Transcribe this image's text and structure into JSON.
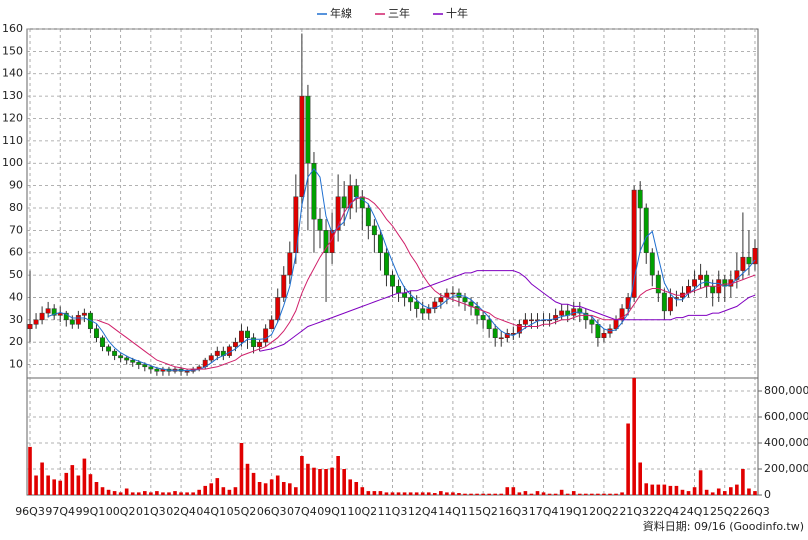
{
  "chart_data": {
    "type": "candlestick",
    "categories": [
      "96Q3",
      null,
      null,
      null,
      null,
      "97Q4",
      null,
      null,
      null,
      null,
      "99Q1",
      null,
      null,
      null,
      null,
      "00Q2",
      null,
      null,
      null,
      null,
      "01Q3",
      null,
      null,
      null,
      null,
      "02Q4",
      null,
      null,
      null,
      null,
      "04Q1",
      null,
      null,
      null,
      null,
      "05Q2",
      null,
      null,
      null,
      null,
      "06Q3",
      null,
      null,
      null,
      null,
      "07Q4",
      null,
      null,
      null,
      null,
      "09Q1",
      null,
      null,
      null,
      null,
      "10Q2",
      null,
      null,
      null,
      null,
      "11Q3",
      null,
      null,
      null,
      null,
      "12Q4",
      null,
      null,
      null,
      null,
      "14Q1",
      null,
      null,
      null,
      null,
      "15Q2",
      null,
      null,
      null,
      null,
      "16Q3",
      null,
      null,
      null,
      null,
      "17Q4",
      null,
      null,
      null,
      null,
      "19Q1",
      null,
      null,
      null,
      null,
      "20Q2",
      null,
      null,
      null,
      null,
      "21Q3",
      null,
      null,
      null,
      null,
      "22Q4",
      null,
      null,
      null,
      null,
      "24Q1",
      null,
      null,
      null,
      null,
      "25Q2",
      null,
      null,
      null,
      null,
      "26Q3"
    ],
    "open": [
      26,
      28,
      30,
      33,
      35,
      32,
      33,
      30,
      28,
      32,
      33,
      26,
      22,
      18,
      16,
      14,
      13,
      12,
      11,
      10,
      9,
      8,
      7,
      8,
      7,
      8,
      7,
      7,
      8,
      9,
      12,
      14,
      16,
      14,
      18,
      20,
      25,
      22,
      18,
      20,
      26,
      30,
      40,
      50,
      60,
      85,
      130,
      100,
      75,
      70,
      60,
      70,
      85,
      80,
      90,
      85,
      80,
      72,
      68,
      60,
      50,
      45,
      42,
      40,
      38,
      35,
      33,
      35,
      38,
      40,
      42,
      42,
      40,
      38,
      36,
      32,
      30,
      26,
      22,
      22,
      24,
      24,
      28,
      30,
      30,
      30,
      30,
      30,
      32,
      34,
      32,
      35,
      33,
      30,
      28,
      22,
      24,
      26,
      30,
      35,
      40,
      88,
      80,
      60,
      50,
      42,
      34,
      40,
      40,
      42,
      45,
      48,
      50,
      45,
      42,
      48,
      45,
      48,
      52,
      58,
      55
    ],
    "high": [
      52,
      33,
      36,
      38,
      37,
      36,
      34,
      32,
      34,
      35,
      34,
      28,
      23,
      19,
      17,
      15,
      14,
      13,
      12,
      11,
      10,
      9,
      9,
      9,
      9,
      9,
      8,
      9,
      10,
      13,
      15,
      18,
      18,
      19,
      22,
      28,
      27,
      24,
      21,
      28,
      32,
      44,
      54,
      65,
      95,
      158,
      135,
      105,
      80,
      75,
      78,
      95,
      92,
      95,
      93,
      88,
      82,
      75,
      70,
      62,
      52,
      48,
      45,
      43,
      41,
      38,
      37,
      40,
      42,
      44,
      45,
      44,
      42,
      40,
      38,
      34,
      32,
      28,
      25,
      26,
      27,
      30,
      33,
      33,
      33,
      33,
      33,
      35,
      37,
      37,
      38,
      38,
      35,
      32,
      30,
      26,
      28,
      32,
      37,
      42,
      90,
      92,
      82,
      62,
      52,
      44,
      44,
      43,
      45,
      48,
      52,
      55,
      52,
      48,
      52,
      50,
      52,
      60,
      78,
      70,
      66
    ],
    "low": [
      20,
      26,
      28,
      31,
      30,
      29,
      27,
      26,
      26,
      29,
      24,
      20,
      16,
      14,
      12,
      11,
      10,
      9,
      8,
      7,
      6,
      5,
      5,
      5,
      6,
      5,
      5,
      6,
      7,
      8,
      11,
      12,
      12,
      13,
      16,
      18,
      17,
      15,
      16,
      18,
      26,
      29,
      38,
      46,
      55,
      80,
      70,
      60,
      62,
      38,
      55,
      65,
      72,
      75,
      78,
      70,
      66,
      60,
      52,
      45,
      40,
      38,
      36,
      34,
      31,
      30,
      30,
      33,
      35,
      37,
      38,
      36,
      34,
      32,
      28,
      26,
      22,
      18,
      18,
      20,
      21,
      22,
      26,
      26,
      26,
      27,
      27,
      28,
      30,
      29,
      30,
      29,
      26,
      24,
      18,
      20,
      22,
      25,
      28,
      32,
      38,
      60,
      55,
      45,
      38,
      30,
      32,
      36,
      38,
      40,
      42,
      44,
      40,
      36,
      38,
      38,
      40,
      44,
      48,
      50,
      52
    ],
    "close": [
      28,
      30,
      33,
      35,
      32,
      33,
      30,
      28,
      32,
      33,
      26,
      22,
      18,
      16,
      14,
      13,
      12,
      11,
      10,
      9,
      8,
      7,
      8,
      7,
      8,
      7,
      7,
      8,
      9,
      12,
      14,
      16,
      14,
      18,
      20,
      25,
      22,
      18,
      20,
      26,
      30,
      40,
      50,
      60,
      85,
      130,
      100,
      75,
      70,
      60,
      70,
      85,
      80,
      90,
      85,
      80,
      72,
      68,
      60,
      50,
      45,
      42,
      40,
      38,
      35,
      33,
      35,
      38,
      40,
      42,
      42,
      40,
      38,
      36,
      32,
      30,
      26,
      22,
      22,
      24,
      24,
      28,
      30,
      30,
      30,
      30,
      30,
      32,
      34,
      32,
      35,
      33,
      30,
      28,
      22,
      24,
      26,
      30,
      35,
      40,
      88,
      80,
      60,
      50,
      42,
      34,
      40,
      40,
      42,
      45,
      48,
      50,
      45,
      42,
      48,
      45,
      48,
      52,
      58,
      55,
      62
    ],
    "up_color": "#e00000",
    "down_color": "#00a000",
    "series": [
      {
        "name": "年線",
        "color": "#1f6fd0",
        "values": [
          null,
          null,
          null,
          31.5,
          32.5,
          33.3,
          32.5,
          30.8,
          30.8,
          30.8,
          29.8,
          28.3,
          24.8,
          20.5,
          17.5,
          15.3,
          13.8,
          12.5,
          11.5,
          10.5,
          9.5,
          8.5,
          8,
          7.5,
          7.5,
          7.5,
          7.3,
          7.5,
          7.8,
          9,
          10.8,
          12.8,
          14,
          15.5,
          17,
          19.3,
          21.3,
          21.3,
          21.3,
          21.5,
          23.5,
          29,
          36.5,
          45,
          58.8,
          81.3,
          93.8,
          97.5,
          93.8,
          76.3,
          68.8,
          71.3,
          73.8,
          81.3,
          85,
          83.8,
          81.8,
          76.3,
          70,
          62.5,
          55.8,
          49.3,
          44.3,
          41.3,
          38.8,
          36.5,
          35.3,
          35.3,
          36.5,
          38.8,
          40.5,
          41,
          40.5,
          39,
          36.5,
          34,
          31,
          27.5,
          25,
          23.5,
          23,
          24.5,
          26.5,
          28,
          29.5,
          30,
          30,
          30.5,
          31.5,
          32,
          33.3,
          33.5,
          32.5,
          31.5,
          28.3,
          26,
          25,
          25.5,
          28.8,
          32.8,
          48.3,
          60.8,
          67,
          69.5,
          58,
          46.5,
          41.5,
          39,
          39,
          41.8,
          43.8,
          46.3,
          47,
          46.3,
          46.3,
          45,
          45.8,
          48.3,
          50.8,
          53.3,
          56.8
        ]
      },
      {
        "name": "三年",
        "color": "#d0206a",
        "values": [
          null,
          null,
          null,
          null,
          null,
          null,
          null,
          null,
          null,
          null,
          null,
          30,
          29,
          28,
          26,
          24,
          22,
          20,
          18,
          16,
          14,
          12,
          11,
          10,
          9,
          8.5,
          8,
          8,
          8,
          8,
          8.5,
          9,
          10,
          11,
          12,
          14,
          15,
          16,
          17,
          18,
          20,
          22,
          25,
          29,
          34,
          42,
          48,
          53,
          58,
          62,
          66,
          72,
          78,
          82,
          84,
          85,
          84,
          82,
          79,
          75,
          72,
          68,
          64,
          59,
          55,
          50,
          46,
          43,
          41,
          40,
          39,
          38,
          37,
          36,
          35,
          34,
          33,
          31,
          30,
          29,
          28,
          27,
          27,
          27,
          27,
          28,
          28,
          29,
          30,
          30,
          31,
          32,
          32,
          32,
          31,
          30,
          30,
          30,
          31,
          33,
          37,
          41,
          43,
          44,
          44,
          43,
          42,
          41,
          41,
          42,
          43,
          44,
          45,
          45,
          45,
          46,
          46,
          47,
          48,
          49,
          50
        ]
      },
      {
        "name": "十年",
        "color": "#8000c0",
        "values": [
          null,
          null,
          null,
          null,
          null,
          null,
          null,
          null,
          null,
          null,
          null,
          null,
          null,
          null,
          null,
          null,
          null,
          null,
          null,
          null,
          null,
          null,
          null,
          null,
          null,
          null,
          null,
          null,
          null,
          null,
          null,
          null,
          null,
          null,
          null,
          null,
          null,
          null,
          16,
          16.5,
          17,
          18,
          19,
          21,
          23,
          25,
          27,
          28,
          29,
          30,
          31,
          32,
          33,
          34,
          35,
          36,
          37,
          38,
          39,
          40,
          41,
          42,
          42,
          43,
          43,
          44,
          45,
          46,
          47,
          48,
          49,
          50,
          51,
          51,
          52,
          52,
          52,
          52,
          52,
          52,
          52,
          51,
          49,
          46,
          44,
          42,
          40,
          38,
          37,
          37,
          36,
          36,
          35,
          34,
          33,
          32,
          31,
          30,
          30,
          30,
          30,
          30,
          30,
          30,
          30,
          30,
          30,
          31,
          31,
          32,
          32,
          32,
          32,
          33,
          33,
          34,
          35,
          36,
          38,
          40,
          41
        ]
      }
    ],
    "ylim": [
      4,
      160
    ],
    "yticks": [
      10,
      20,
      30,
      40,
      50,
      60,
      70,
      80,
      90,
      100,
      110,
      120,
      130,
      140,
      150,
      160
    ],
    "grid": true,
    "volume": {
      "color": "#e00000",
      "ylim": [
        0,
        900000
      ],
      "yticks": [
        0,
        {
          "value": 200000,
          "label": "200,000"
        },
        {
          "value": 400000,
          "label": "400,000"
        },
        {
          "value": 600000,
          "label": "600,000"
        },
        {
          "value": 800000,
          "label": "800,000"
        }
      ],
      "values": [
        370000,
        150000,
        250000,
        150000,
        120000,
        110000,
        170000,
        230000,
        150000,
        280000,
        160000,
        100000,
        60000,
        40000,
        30000,
        20000,
        50000,
        20000,
        20000,
        30000,
        20000,
        30000,
        20000,
        20000,
        30000,
        20000,
        20000,
        20000,
        40000,
        70000,
        90000,
        130000,
        60000,
        40000,
        60000,
        400000,
        240000,
        170000,
        100000,
        90000,
        120000,
        150000,
        100000,
        90000,
        60000,
        300000,
        240000,
        210000,
        200000,
        200000,
        210000,
        300000,
        200000,
        120000,
        100000,
        60000,
        30000,
        30000,
        30000,
        20000,
        20000,
        20000,
        20000,
        20000,
        20000,
        20000,
        20000,
        15000,
        30000,
        20000,
        20000,
        15000,
        10000,
        10000,
        10000,
        10000,
        10000,
        10000,
        10000,
        60000,
        60000,
        20000,
        30000,
        10000,
        30000,
        20000,
        10000,
        10000,
        40000,
        10000,
        30000,
        10000,
        10000,
        10000,
        10000,
        10000,
        10000,
        10000,
        20000,
        550000,
        900000,
        250000,
        90000,
        80000,
        80000,
        80000,
        70000,
        70000,
        40000,
        30000,
        60000,
        190000,
        40000,
        20000,
        50000,
        30000,
        60000,
        80000,
        200000,
        50000,
        30000
      ]
    },
    "footer": "資料日期: 09/16  (Goodinfo.tw)"
  }
}
